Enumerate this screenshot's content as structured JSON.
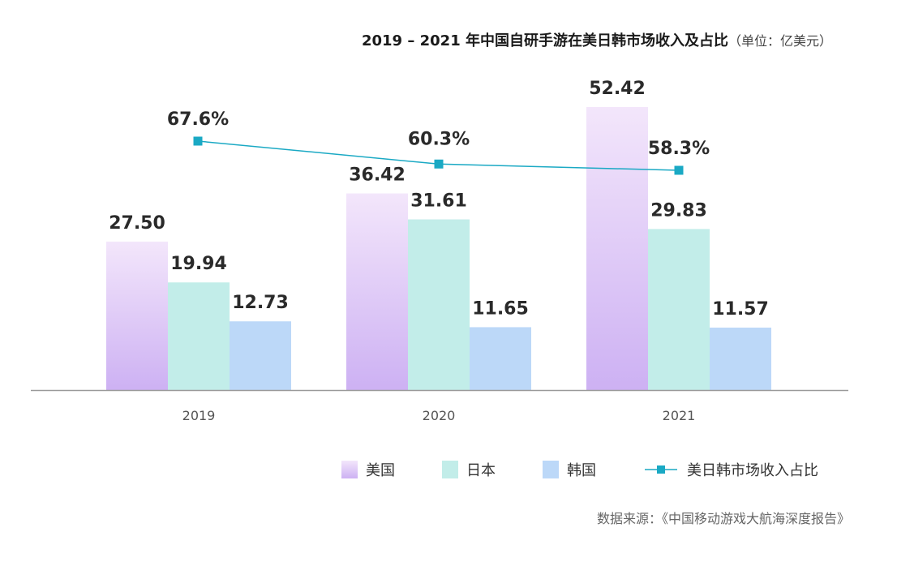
{
  "title": "2019 – 2021 年中国自研手游在美日韩市场收入及占比",
  "unit": "（单位：亿美元）",
  "source": "数据来源：《中国移动游戏大航海深度报告》",
  "chart_data": {
    "type": "bar",
    "title": "2019 – 2021 年中国自研手游在美日韩市场收入及占比",
    "categories": [
      "2019",
      "2020",
      "2021"
    ],
    "ylim": [
      0,
      55
    ],
    "series": [
      {
        "name": "美国",
        "values": [
          27.5,
          36.42,
          52.42
        ],
        "labels": [
          "27.50",
          "36.42",
          "52.42"
        ],
        "color_top": "#f3e6fb",
        "color_bottom": "#cdb1f3"
      },
      {
        "name": "日本",
        "values": [
          19.94,
          31.61,
          29.83
        ],
        "labels": [
          "19.94",
          "31.61",
          "29.83"
        ],
        "color": "#c2ede9"
      },
      {
        "name": "韩国",
        "values": [
          12.73,
          11.65,
          11.57
        ],
        "labels": [
          "12.73",
          "11.65",
          "11.57"
        ],
        "color": "#bcd8f8"
      }
    ],
    "line": {
      "name": "美日韩市场收入占比",
      "type": "line",
      "values": [
        67.6,
        60.3,
        58.3
      ],
      "labels": [
        "67.6%",
        "60.3%",
        "58.3%"
      ],
      "ylim": [
        0,
        100
      ],
      "color": "#1aa9c4"
    },
    "grid": false,
    "legend_position": "bottom-right"
  }
}
